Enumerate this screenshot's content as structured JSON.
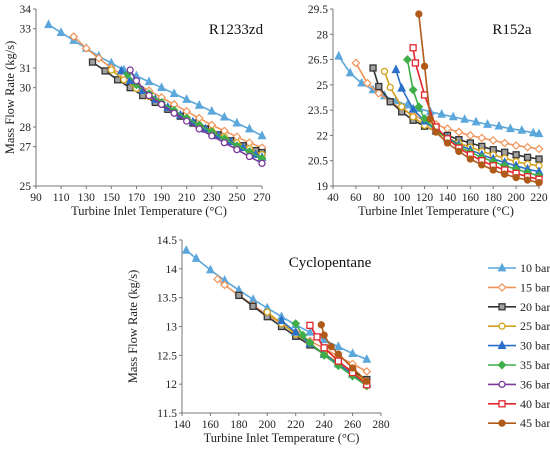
{
  "legend": [
    {
      "label": "10 bar",
      "color": "#5ba7dc",
      "marker": "triangle"
    },
    {
      "label": "15 bar",
      "color": "#f0955a",
      "marker": "diamond-open"
    },
    {
      "label": "20 bar",
      "color": "#333333",
      "marker": "square-open",
      "fill": "#a0a0a0"
    },
    {
      "label": "25 bar",
      "color": "#d1a21a",
      "marker": "circle-open"
    },
    {
      "label": "30 bar",
      "color": "#2a70c9",
      "marker": "triangle"
    },
    {
      "label": "35 bar",
      "color": "#3fae49",
      "marker": "diamond"
    },
    {
      "label": "36 bar",
      "color": "#7a3a9a",
      "marker": "circle-open"
    },
    {
      "label": "40 bar",
      "color": "#e3262c",
      "marker": "square-open"
    },
    {
      "label": "45 bar",
      "color": "#b05a1a",
      "marker": "circle"
    }
  ],
  "chart_data": [
    {
      "type": "line",
      "title": "R1233zd",
      "xlabel": "Turbine Inlet Temperature (°C)",
      "ylabel": "Mass Flow Rate (kg/s)",
      "xlim": [
        90,
        270
      ],
      "ylim": [
        25,
        34
      ],
      "xticks": [
        90,
        110,
        130,
        150,
        170,
        190,
        210,
        230,
        250,
        270
      ],
      "yticks": [
        25,
        27,
        28,
        30,
        31,
        33,
        34
      ],
      "ytick_labels": [
        "25",
        "27",
        "28",
        "30",
        "31",
        "33",
        "34"
      ],
      "series": [
        {
          "name": "10 bar",
          "x": [
            100,
            110,
            120,
            130,
            140,
            150,
            160,
            170,
            180,
            190,
            200,
            210,
            220,
            230,
            240,
            250,
            260,
            270
          ],
          "y": [
            33.2,
            32.8,
            32.4,
            32.0,
            31.6,
            31.25,
            30.9,
            30.6,
            30.3,
            30.0,
            29.7,
            29.4,
            29.1,
            28.8,
            28.5,
            28.2,
            27.9,
            27.55
          ]
        },
        {
          "name": "15 bar",
          "x": [
            120,
            130,
            140,
            150,
            160,
            170,
            180,
            190,
            200,
            210,
            220,
            230,
            240,
            250,
            260,
            270
          ],
          "y": [
            32.6,
            32.0,
            31.5,
            31.0,
            30.6,
            30.2,
            29.85,
            29.5,
            29.15,
            28.8,
            28.45,
            28.1,
            27.8,
            27.5,
            27.2,
            26.95
          ]
        },
        {
          "name": "20 bar",
          "x": [
            135,
            145,
            155,
            165,
            175,
            185,
            195,
            205,
            215,
            225,
            235,
            245,
            255,
            265,
            270
          ],
          "y": [
            31.3,
            30.85,
            30.4,
            30.0,
            29.6,
            29.25,
            28.9,
            28.55,
            28.2,
            27.9,
            27.6,
            27.3,
            27.05,
            26.8,
            26.7
          ]
        },
        {
          "name": "25 bar",
          "x": [
            150,
            160,
            170,
            180,
            190,
            200,
            210,
            220,
            230,
            240,
            250,
            260,
            270
          ],
          "y": [
            30.9,
            30.4,
            29.95,
            29.55,
            29.15,
            28.8,
            28.45,
            28.1,
            27.8,
            27.5,
            27.2,
            26.9,
            26.6
          ]
        },
        {
          "name": "30 bar",
          "x": [
            158,
            165,
            175,
            185,
            195,
            205,
            215,
            225,
            235,
            245,
            255,
            265,
            270
          ],
          "y": [
            30.85,
            30.35,
            29.85,
            29.4,
            29.0,
            28.6,
            28.25,
            27.9,
            27.55,
            27.25,
            26.95,
            26.6,
            26.45
          ]
        },
        {
          "name": "35 bar",
          "x": [
            163,
            170,
            180,
            190,
            200,
            210,
            220,
            230,
            240,
            250,
            260,
            270
          ],
          "y": [
            30.7,
            30.15,
            29.7,
            29.25,
            28.85,
            28.45,
            28.1,
            27.75,
            27.4,
            27.05,
            26.75,
            26.4
          ]
        },
        {
          "name": "36 bar",
          "x": [
            165,
            170,
            180,
            190,
            200,
            210,
            220,
            230,
            240,
            250,
            260,
            270
          ],
          "y": [
            30.9,
            30.35,
            29.6,
            29.15,
            28.7,
            28.3,
            27.9,
            27.55,
            27.2,
            26.85,
            26.5,
            26.15
          ]
        }
      ]
    },
    {
      "type": "line",
      "title": "R152a",
      "xlabel": "Turbine Inlet Temperature (°C)",
      "ylabel": "",
      "xlim": [
        40,
        220
      ],
      "ylim": [
        19,
        29.5
      ],
      "xticks": [
        40,
        60,
        80,
        100,
        120,
        140,
        160,
        180,
        200,
        220
      ],
      "yticks": [
        19,
        20.5,
        22,
        23.5,
        25,
        26.5,
        28,
        29.5
      ],
      "ytick_labels": [
        "19",
        "20.5",
        "22",
        "23.5",
        "25",
        "26.5",
        "28",
        "29.5"
      ],
      "series": [
        {
          "name": "10 bar",
          "x": [
            45,
            55,
            65,
            75,
            85,
            95,
            105,
            115,
            125,
            135,
            145,
            155,
            165,
            175,
            185,
            195,
            205,
            215,
            220
          ],
          "y": [
            26.7,
            25.7,
            25.1,
            24.7,
            24.35,
            24.05,
            23.8,
            23.6,
            23.4,
            23.25,
            23.1,
            22.95,
            22.8,
            22.65,
            22.55,
            22.4,
            22.3,
            22.15,
            22.1
          ]
        },
        {
          "name": "15 bar",
          "x": [
            60,
            70,
            80,
            90,
            100,
            110,
            120,
            130,
            140,
            150,
            160,
            170,
            180,
            190,
            200,
            210,
            220
          ],
          "y": [
            26.3,
            25.1,
            24.5,
            24.0,
            23.55,
            23.2,
            22.9,
            22.65,
            22.4,
            22.2,
            22.0,
            21.85,
            21.7,
            21.55,
            21.4,
            21.3,
            21.2
          ]
        },
        {
          "name": "20 bar",
          "x": [
            75,
            80,
            90,
            100,
            110,
            120,
            130,
            140,
            150,
            160,
            170,
            180,
            190,
            200,
            210,
            220
          ],
          "y": [
            26.0,
            24.9,
            24.0,
            23.4,
            22.9,
            22.55,
            22.25,
            22.0,
            21.75,
            21.55,
            21.35,
            21.15,
            21.0,
            20.85,
            20.7,
            20.6
          ]
        },
        {
          "name": "25 bar",
          "x": [
            85,
            90,
            100,
            110,
            120,
            130,
            140,
            150,
            160,
            170,
            180,
            190,
            200,
            210,
            220
          ],
          "y": [
            25.8,
            24.85,
            23.7,
            23.1,
            22.6,
            22.2,
            21.85,
            21.55,
            21.3,
            21.05,
            20.85,
            20.65,
            20.45,
            20.3,
            20.2
          ]
        },
        {
          "name": "30 bar",
          "x": [
            95,
            100,
            110,
            120,
            130,
            140,
            150,
            160,
            170,
            180,
            190,
            200,
            210,
            220
          ],
          "y": [
            25.9,
            24.8,
            23.55,
            22.85,
            22.3,
            21.85,
            21.45,
            21.15,
            20.85,
            20.6,
            20.4,
            20.2,
            20.0,
            19.85
          ]
        },
        {
          "name": "35 bar",
          "x": [
            105,
            110,
            115,
            120,
            130,
            140,
            150,
            160,
            170,
            180,
            190,
            200,
            210,
            220
          ],
          "y": [
            26.5,
            24.7,
            23.7,
            23.0,
            22.3,
            21.8,
            21.35,
            21.0,
            20.7,
            20.45,
            20.2,
            20.0,
            19.8,
            19.6
          ]
        },
        {
          "name": "40 bar",
          "x": [
            110,
            112,
            120,
            130,
            140,
            150,
            160,
            170,
            180,
            190,
            200,
            210,
            220
          ],
          "y": [
            27.2,
            26.3,
            24.4,
            22.5,
            21.8,
            21.25,
            20.85,
            20.5,
            20.2,
            19.95,
            19.75,
            19.55,
            19.4
          ]
        },
        {
          "name": "45 bar",
          "x": [
            115,
            120,
            125,
            130,
            140,
            150,
            160,
            170,
            180,
            190,
            200,
            210,
            220
          ],
          "y": [
            29.2,
            26.1,
            23.0,
            22.2,
            21.55,
            21.05,
            20.6,
            20.25,
            19.95,
            19.7,
            19.5,
            19.35,
            19.2
          ]
        }
      ]
    },
    {
      "type": "line",
      "title": "Cyclopentane",
      "xlabel": "Turbine Inlet Temperature (°C)",
      "ylabel": "Mass Flow Rate (kg/s)",
      "xlim": [
        140,
        280
      ],
      "ylim": [
        11.5,
        14.5
      ],
      "xticks": [
        140,
        160,
        180,
        200,
        220,
        240,
        260,
        280
      ],
      "yticks": [
        11.5,
        12,
        12.5,
        13,
        13.5,
        14,
        14.5
      ],
      "ytick_labels": [
        "11.5",
        "12",
        "12.5",
        "13",
        "13.5",
        "14",
        "14.5"
      ],
      "series": [
        {
          "name": "10 bar",
          "x": [
            143,
            150,
            160,
            170,
            180,
            190,
            200,
            210,
            220,
            230,
            240,
            250,
            260,
            270
          ],
          "y": [
            14.32,
            14.18,
            13.98,
            13.8,
            13.63,
            13.47,
            13.32,
            13.17,
            13.03,
            12.9,
            12.77,
            12.65,
            12.53,
            12.43
          ]
        },
        {
          "name": "15 bar",
          "x": [
            165,
            170,
            180,
            190,
            200,
            210,
            220,
            230,
            240,
            250,
            260,
            270
          ],
          "y": [
            13.82,
            13.72,
            13.54,
            13.37,
            13.2,
            13.05,
            12.9,
            12.75,
            12.62,
            12.48,
            12.35,
            12.22
          ]
        },
        {
          "name": "20 bar",
          "x": [
            180,
            190,
            200,
            210,
            220,
            230,
            240,
            250,
            260,
            270
          ],
          "y": [
            13.54,
            13.35,
            13.17,
            13.0,
            12.83,
            12.68,
            12.52,
            12.37,
            12.22,
            12.08
          ]
        },
        {
          "name": "25 bar",
          "x": [
            200,
            210,
            220,
            230,
            240,
            250,
            260,
            270
          ],
          "y": [
            13.25,
            13.05,
            12.87,
            12.7,
            12.53,
            12.37,
            12.2,
            12.04
          ]
        },
        {
          "name": "30 bar",
          "x": [
            210,
            220,
            230,
            240,
            250,
            260,
            270
          ],
          "y": [
            13.1,
            12.9,
            12.7,
            12.52,
            12.35,
            12.17,
            12.0
          ]
        },
        {
          "name": "35 bar",
          "x": [
            220,
            225,
            230,
            240,
            250,
            260,
            270
          ],
          "y": [
            13.05,
            12.85,
            12.72,
            12.5,
            12.32,
            12.14,
            11.97
          ]
        },
        {
          "name": "40 bar",
          "x": [
            230,
            235,
            240,
            250,
            260,
            270
          ],
          "y": [
            13.02,
            12.82,
            12.63,
            12.4,
            12.2,
            11.99
          ]
        },
        {
          "name": "45 bar",
          "x": [
            238,
            240,
            245,
            250,
            260,
            270
          ],
          "y": [
            13.03,
            12.85,
            12.65,
            12.52,
            12.28,
            12.05
          ]
        }
      ]
    }
  ]
}
